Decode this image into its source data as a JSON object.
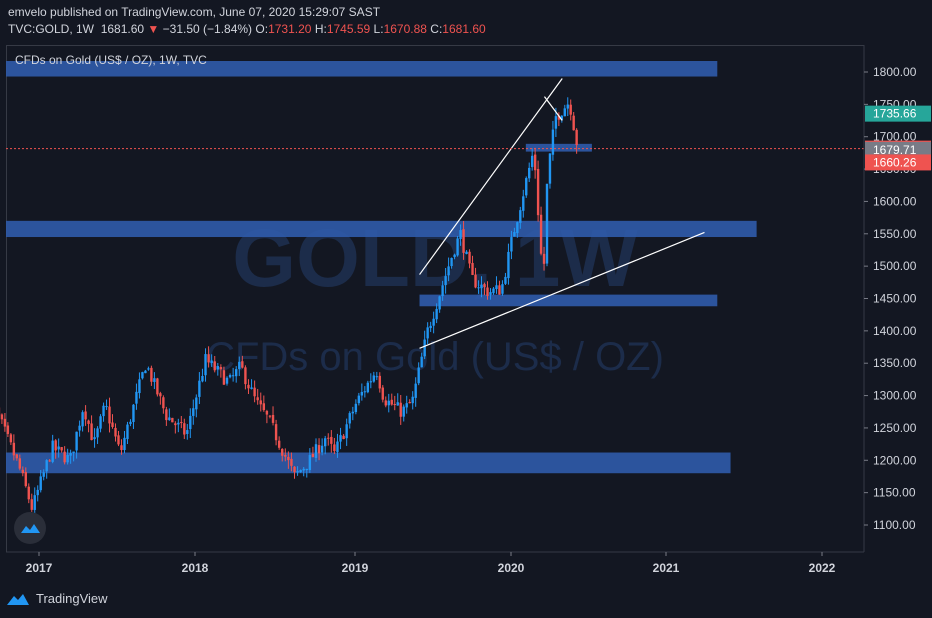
{
  "header": {
    "line1": "emvelo published on TradingView.com, June 07, 2020 15:29:07 SAST",
    "symbol": "TVC:GOLD, 1W",
    "last": "1681.60",
    "arrow": "▼",
    "change": "−31.50 (−1.84%)",
    "o_label": "O:",
    "o_val": "1731.20",
    "h_label": "H:",
    "h_val": "1745.59",
    "l_label": "L:",
    "l_val": "1670.88",
    "c_label": "C:",
    "c_val": "1681.60"
  },
  "chart_title": "CFDs on Gold (US$ / OZ), 1W, TVC",
  "watermark": {
    "symbol": "GOLD, 1W",
    "name": "CFDs on Gold (US$ / OZ)"
  },
  "footer": {
    "brand": "TradingView"
  },
  "colors": {
    "background": "#131722",
    "up": "#2196f3",
    "down": "#ef5350",
    "zone": "#2f5aa8",
    "price_line": "#ef5350"
  },
  "chart_data": {
    "type": "candlestick",
    "interval": "1W",
    "x_ticks": [
      "2017",
      "2018",
      "2019",
      "2020",
      "2021",
      "2022"
    ],
    "y_ticks": [
      "1100.00",
      "1150.00",
      "1200.00",
      "1250.00",
      "1300.00",
      "1350.00",
      "1400.00",
      "1450.00",
      "1500.00",
      "1550.00",
      "1600.00",
      "1650.00",
      "1700.00",
      "1750.00",
      "1800.00"
    ],
    "ylim": [
      1080,
      1820
    ],
    "price_tags": [
      {
        "value": 1735.66,
        "label": "1735.66",
        "color": "#26a69a"
      },
      {
        "value": 1681.6,
        "label": "1681.60",
        "color": "#ef5350"
      },
      {
        "value": 1679.71,
        "label": "1679.71",
        "color": "#787b86"
      },
      {
        "value": 1660.26,
        "label": "1660.26",
        "color": "#ef5350"
      }
    ],
    "zones": [
      {
        "from": "2016-10-01",
        "to": "2021-05-01",
        "low": 1793,
        "high": 1817
      },
      {
        "from": "2016-10-01",
        "to": "2021-08-01",
        "low": 1545,
        "high": 1570
      },
      {
        "from": "2019-06-01",
        "to": "2021-05-01",
        "low": 1438,
        "high": 1456
      },
      {
        "from": "2016-10-01",
        "to": "2021-06-01",
        "low": 1180,
        "high": 1212
      },
      {
        "from": "2020-02-05",
        "to": "2020-07-10",
        "low": 1677,
        "high": 1689
      }
    ],
    "trendlines": [
      {
        "from": [
          "2019-06-01",
          1487
        ],
        "to": [
          "2020-05-01",
          1790
        ]
      },
      {
        "from": [
          "2019-06-01",
          1373
        ],
        "to": [
          "2021-04-01",
          1552
        ]
      },
      {
        "from": [
          "2020-03-20",
          1762
        ],
        "to": [
          "2020-05-01",
          1725
        ]
      }
    ],
    "price_line": 1681.6,
    "anchors": [
      [
        "2016-09-01",
        1310
      ],
      [
        "2016-11-15",
        1190
      ],
      [
        "2016-12-16",
        1125
      ],
      [
        "2017-02-01",
        1220
      ],
      [
        "2017-03-15",
        1200
      ],
      [
        "2017-04-15",
        1285
      ],
      [
        "2017-05-10",
        1225
      ],
      [
        "2017-06-05",
        1285
      ],
      [
        "2017-07-10",
        1210
      ],
      [
        "2017-09-08",
        1350
      ],
      [
        "2017-10-25",
        1270
      ],
      [
        "2017-12-12",
        1240
      ],
      [
        "2018-01-25",
        1355
      ],
      [
        "2018-03-20",
        1320
      ],
      [
        "2018-04-15",
        1345
      ],
      [
        "2018-05-20",
        1290
      ],
      [
        "2018-06-20",
        1260
      ],
      [
        "2018-08-16",
        1175
      ],
      [
        "2018-09-20",
        1200
      ],
      [
        "2018-10-25",
        1235
      ],
      [
        "2018-11-15",
        1210
      ],
      [
        "2019-01-05",
        1290
      ],
      [
        "2019-02-20",
        1340
      ],
      [
        "2019-03-10",
        1295
      ],
      [
        "2019-04-20",
        1275
      ],
      [
        "2019-05-15",
        1290
      ],
      [
        "2019-06-20",
        1400
      ],
      [
        "2019-08-20",
        1525
      ],
      [
        "2019-09-05",
        1550
      ],
      [
        "2019-10-01",
        1480
      ],
      [
        "2019-11-10",
        1460
      ],
      [
        "2019-12-10",
        1465
      ],
      [
        "2020-01-08",
        1555
      ],
      [
        "2020-02-24",
        1680
      ],
      [
        "2020-03-17",
        1470
      ],
      [
        "2020-03-27",
        1640
      ],
      [
        "2020-04-15",
        1730
      ],
      [
        "2020-05-18",
        1755
      ],
      [
        "2020-06-07",
        1681
      ]
    ]
  }
}
